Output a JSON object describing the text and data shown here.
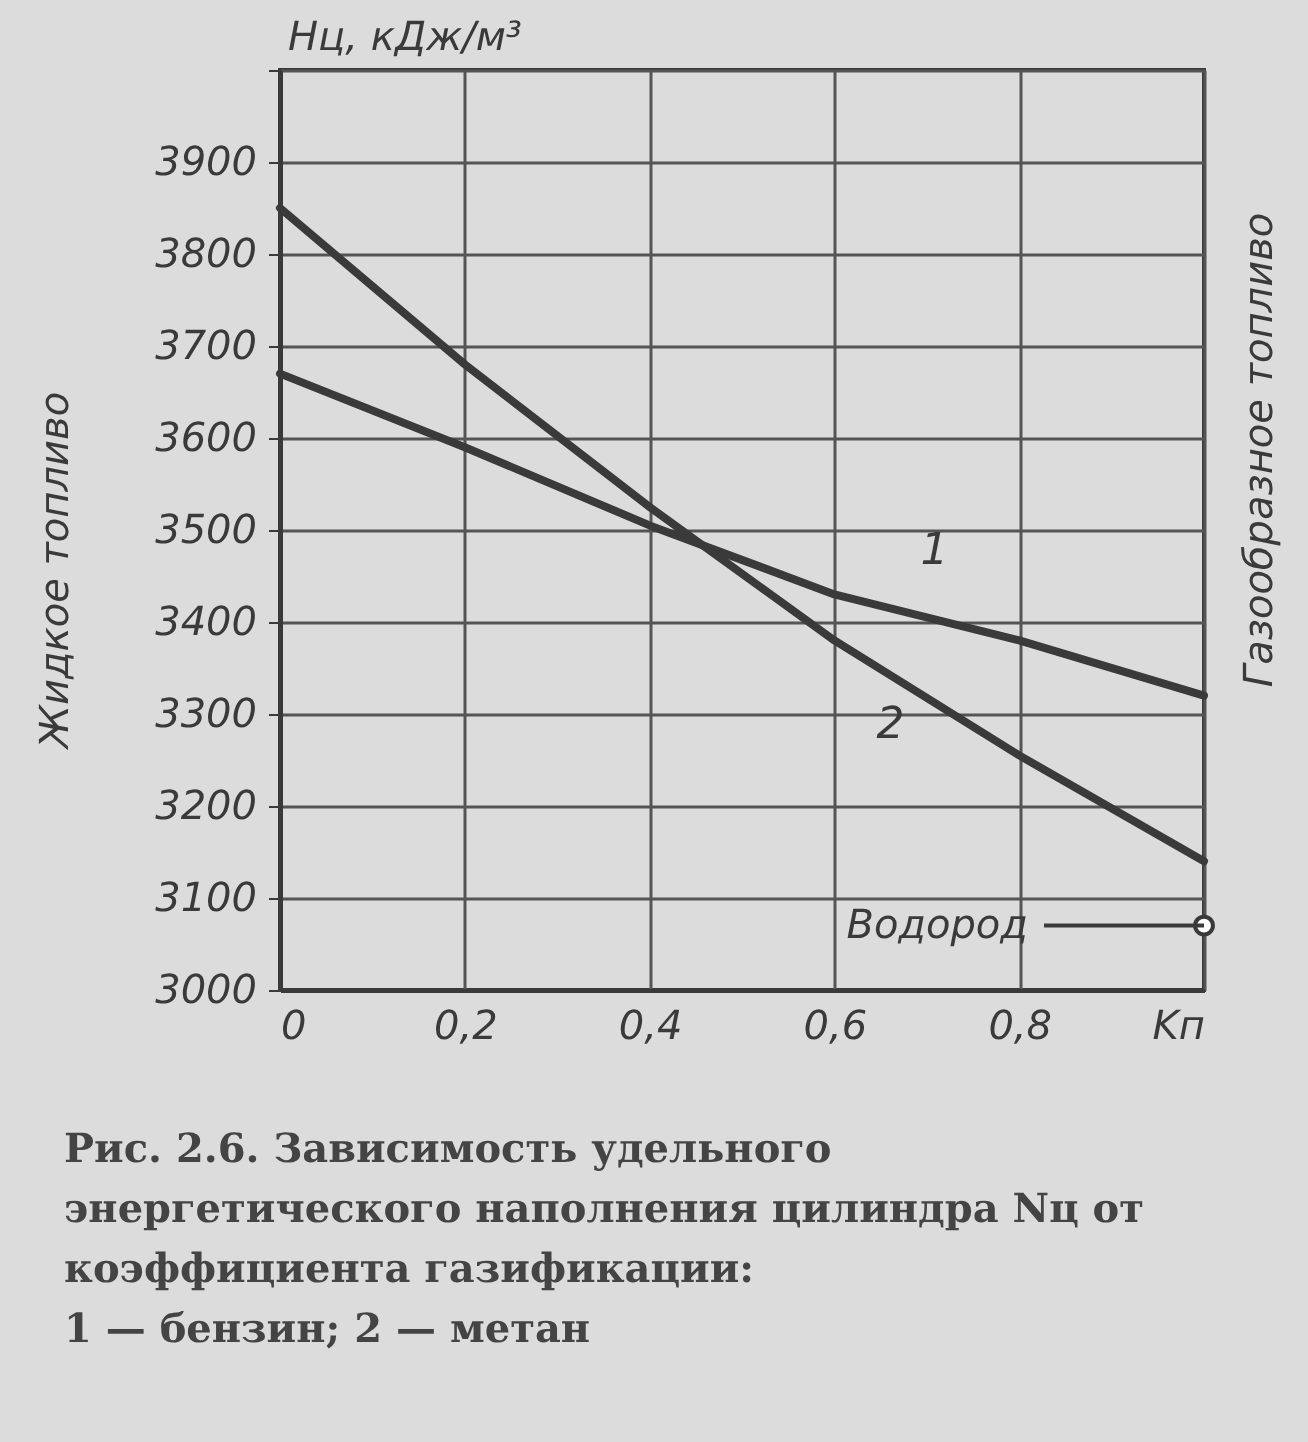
{
  "chart_data": {
    "type": "line",
    "ylabel": "Hц, кДж/м³",
    "xlim": [
      0,
      1
    ],
    "ylim": [
      3000,
      4000
    ],
    "xticks": [
      0,
      {
        "value": 0.2,
        "label": "0,2"
      },
      {
        "value": 0.4,
        "label": "0,4"
      },
      {
        "value": 0.6,
        "label": "0,6"
      },
      {
        "value": 0.8,
        "label": "0,8"
      },
      {
        "value": 1,
        "label": "Kп"
      }
    ],
    "yticks": [
      3000,
      3100,
      3200,
      3300,
      3400,
      3500,
      3600,
      3700,
      3800,
      3900,
      {
        "value": 4000,
        "label": null
      }
    ],
    "grid": true,
    "series": [
      {
        "name": "1",
        "color": "#3a3a3a",
        "x": [
          0,
          0.2,
          0.4,
          0.6,
          0.8,
          1
        ],
        "values": [
          3670,
          3590,
          3505,
          3430,
          3380,
          3320
        ]
      },
      {
        "name": "2",
        "color": "#3a3a3a",
        "x": [
          0,
          0.2,
          0.4,
          0.6,
          0.8,
          1
        ],
        "values": [
          3850,
          3680,
          3525,
          3380,
          3255,
          3140
        ]
      },
      {
        "name": "Водород",
        "type": "scatter",
        "marker": "circle",
        "color": "#3a3a3a",
        "x": [
          1
        ],
        "values": [
          3070
        ]
      }
    ],
    "annotations": [
      "Жидкое топливо",
      "Газообразное топливо",
      "Рис. 2.6. Зависимость удельного энергетического наполнения цилиндра Nц от коэффициента газификации:",
      "1 — бензин; 2 — метан"
    ]
  }
}
